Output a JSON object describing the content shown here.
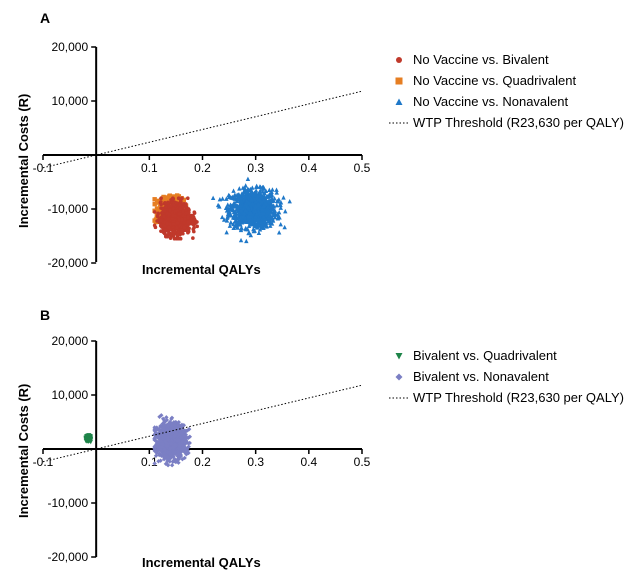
{
  "panels": [
    {
      "letter": "A",
      "xlabel": "Incremental QALYs",
      "ylabel": "Incremental Costs (R)",
      "legend": [
        {
          "label": "No Vaccine vs. Bivalent",
          "marker": "circle",
          "color": "#c0392b"
        },
        {
          "label": "No Vaccine vs. Quadrivalent",
          "marker": "square",
          "color": "#e67e22"
        },
        {
          "label": "No Vaccine vs. Nonavalent",
          "marker": "triangle",
          "color": "#1f78c8"
        },
        {
          "label": "WTP Threshold (R23,630 per QALY)",
          "marker": "dotted-line",
          "color": "#000000"
        }
      ]
    },
    {
      "letter": "B",
      "xlabel": "Incremental QALYs",
      "ylabel": "Incremental Costs (R)",
      "legend": [
        {
          "label": "Bivalent vs. Quadrivalent",
          "marker": "triangle-down",
          "color": "#1e8449"
        },
        {
          "label": "Bivalent vs. Nonavalent",
          "marker": "diamond",
          "color": "#7b7fc4"
        },
        {
          "label": "WTP Threshold (R23,630 per QALY)",
          "marker": "dotted-line",
          "color": "#000000"
        }
      ]
    }
  ],
  "chart_data": [
    {
      "type": "scatter",
      "title": "",
      "xlabel": "Incremental QALYs",
      "ylabel": "Incremental Costs (R)",
      "xlim": [
        -0.1,
        0.5
      ],
      "ylim": [
        -20000,
        20000
      ],
      "xticks": [
        -0.1,
        0.1,
        0.2,
        0.3,
        0.4,
        0.5
      ],
      "xtick_labels": [
        "-0.1",
        "0.1",
        "0.2",
        "0.3",
        "0.4",
        "0.5"
      ],
      "yticks": [
        20000,
        10000,
        -10000,
        -20000
      ],
      "ytick_labels": [
        "20,000",
        "10,000",
        "-10,000",
        "-20,000"
      ],
      "grid": false,
      "legend_position": "right",
      "series": [
        {
          "name": "No Vaccine vs. Nonavalent",
          "marker": "triangle",
          "color": "#1f78c8",
          "center": [
            0.295,
            -10000
          ],
          "spread": [
            0.07,
            5500
          ],
          "x_range": [
            0.22,
            0.38
          ],
          "y_range": [
            -16000,
            -4500
          ],
          "n": 1000
        },
        {
          "name": "No Vaccine vs. Quadrivalent",
          "marker": "square",
          "color": "#e67e22",
          "center": [
            0.143,
            -10500
          ],
          "spread": [
            0.035,
            3500
          ],
          "x_range": [
            0.11,
            0.17
          ],
          "y_range": [
            -13500,
            -7500
          ],
          "n": 1000
        },
        {
          "name": "No Vaccine vs. Bivalent",
          "marker": "circle",
          "color": "#c0392b",
          "center": [
            0.15,
            -11800
          ],
          "spread": [
            0.045,
            4500
          ],
          "x_range": [
            0.11,
            0.19
          ],
          "y_range": [
            -15500,
            -8000
          ],
          "n": 1000
        }
      ],
      "wtp_line": {
        "name": "WTP Threshold (R23,630 per QALY)",
        "slope": 23630
      }
    },
    {
      "type": "scatter",
      "title": "",
      "xlabel": "Incremental QALYs",
      "ylabel": "Incremental Costs (R)",
      "xlim": [
        -0.1,
        0.5
      ],
      "ylim": [
        -20000,
        20000
      ],
      "xticks": [
        -0.1,
        0.1,
        0.2,
        0.3,
        0.4,
        0.5
      ],
      "xtick_labels": [
        "-0.1",
        "0.1",
        "0.2",
        "0.3",
        "0.4",
        "0.5"
      ],
      "yticks": [
        20000,
        10000,
        -10000,
        -20000
      ],
      "ytick_labels": [
        "20,000",
        "10,000",
        "-10,000",
        "-20,000"
      ],
      "grid": false,
      "legend_position": "right",
      "series": [
        {
          "name": "Bivalent vs. Quadrivalent",
          "marker": "triangle-down",
          "color": "#1e8449",
          "center": [
            -0.015,
            2000
          ],
          "spread": [
            0.006,
            700
          ],
          "x_range": [
            -0.02,
            -0.01
          ],
          "y_range": [
            1200,
            2800
          ],
          "n": 300
        },
        {
          "name": "Bivalent vs. Nonavalent",
          "marker": "diamond",
          "color": "#7b7fc4",
          "center": [
            0.14,
            1500
          ],
          "spread": [
            0.045,
            5000
          ],
          "x_range": [
            0.11,
            0.19
          ],
          "y_range": [
            -3000,
            6500
          ],
          "n": 1000
        }
      ],
      "wtp_line": {
        "name": "WTP Threshold (R23,630 per QALY)",
        "slope": 23630
      }
    }
  ]
}
